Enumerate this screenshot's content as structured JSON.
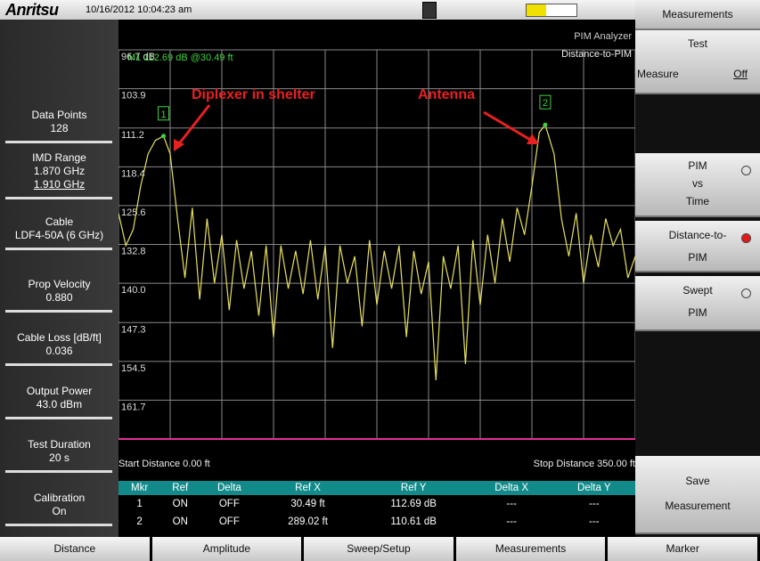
{
  "header": {
    "brand": "Anritsu",
    "datetime": "10/16/2012 10:04:23 am"
  },
  "left_panel": [
    {
      "label": "Data Points",
      "values": [
        "128"
      ]
    },
    {
      "label": "IMD Range",
      "values": [
        "1.870 GHz",
        "1.910 GHz"
      ]
    },
    {
      "label": "Cable",
      "values": [
        "LDF4-50A (6 GHz)"
      ]
    },
    {
      "label": "Prop Velocity",
      "values": [
        "0.880"
      ]
    },
    {
      "label": "Cable Loss [dB/ft]",
      "values": [
        "0.036"
      ]
    },
    {
      "label": "Output Power",
      "values": [
        "43.0 dBm"
      ]
    },
    {
      "label": "Test Duration",
      "values": [
        "20 s"
      ]
    },
    {
      "label": "Calibration",
      "values": [
        "On"
      ]
    }
  ],
  "plot": {
    "mode": "PIM Analyzer",
    "measurement": "Distance-to-PIM",
    "marker_readout": "M1 112.69 dB @30.49 ft",
    "start_label": "Start Distance 0.00 ft",
    "stop_label": "Stop Distance 350.00 ft",
    "xlim": [
      0,
      350
    ],
    "xgrid": [
      0,
      35,
      70,
      105,
      140,
      175,
      210,
      245,
      280,
      315,
      350
    ],
    "ylim": [
      96.7,
      168.9
    ],
    "yticks": [
      {
        "value": 96.7,
        "label": "96.7 dB"
      },
      103.9,
      111.2,
      118.4,
      125.6,
      132.8,
      {
        "value": 140.0,
        "label": "140.0"
      },
      147.3,
      154.5,
      161.7
    ],
    "annotations": [
      "Diplexer in shelter",
      "Antenna"
    ],
    "trace": {
      "color": "#e8e060",
      "x": [
        0,
        5,
        10,
        15,
        20,
        25,
        30.49,
        35,
        40,
        45,
        50,
        55,
        60,
        65,
        70,
        75,
        80,
        85,
        90,
        95,
        100,
        105,
        110,
        115,
        120,
        125,
        130,
        135,
        140,
        145,
        150,
        155,
        160,
        165,
        170,
        175,
        180,
        185,
        190,
        195,
        200,
        205,
        210,
        215,
        220,
        225,
        230,
        235,
        240,
        245,
        250,
        255,
        260,
        265,
        270,
        275,
        280,
        285,
        289.02,
        295,
        300,
        305,
        310,
        315,
        320,
        325,
        330,
        335,
        340,
        345,
        350
      ],
      "y": [
        127,
        133,
        130,
        122,
        116,
        113.5,
        112.69,
        116,
        128,
        139,
        126,
        143,
        128,
        140,
        131,
        145,
        132,
        141,
        134,
        146,
        133,
        150,
        133,
        141,
        134,
        142,
        132,
        143,
        133,
        152,
        133,
        140,
        135,
        148,
        132,
        144,
        134,
        141,
        133,
        150,
        134,
        142,
        136,
        158,
        135,
        141,
        133,
        155,
        132,
        144,
        131,
        140,
        128,
        136,
        126,
        131,
        122,
        112,
        110.61,
        116,
        128,
        135,
        127,
        140,
        131,
        137,
        128,
        133,
        130,
        139,
        135
      ]
    },
    "markers": [
      {
        "label": "1",
        "x": 30.49,
        "y": 112.69
      },
      {
        "label": "2",
        "x": 289.02,
        "y": 110.61
      }
    ]
  },
  "table": {
    "headers": [
      "Mkr",
      "Ref",
      "Delta",
      "Ref X",
      "Ref Y",
      "Delta X",
      "Delta Y"
    ],
    "rows": [
      [
        "1",
        "ON",
        "OFF",
        "30.49 ft",
        "112.69 dB",
        "---",
        "---"
      ],
      [
        "2",
        "ON",
        "OFF",
        "289.02 ft",
        "110.61 dB",
        "---",
        "---"
      ]
    ]
  },
  "right_panel": {
    "title": "Measurements",
    "test": {
      "label": "Test",
      "measure": "Measure",
      "state": "Off"
    },
    "options": [
      {
        "lines": [
          "PIM",
          "vs",
          "Time"
        ],
        "selected": false
      },
      {
        "lines": [
          "Distance-to-",
          "PIM"
        ],
        "selected": true
      },
      {
        "lines": [
          "Swept",
          "PIM"
        ],
        "selected": false
      }
    ],
    "save": [
      "Save",
      "Measurement"
    ]
  },
  "tabs": [
    "Distance",
    "Amplitude",
    "Sweep/Setup",
    "Measurements",
    "Marker"
  ]
}
